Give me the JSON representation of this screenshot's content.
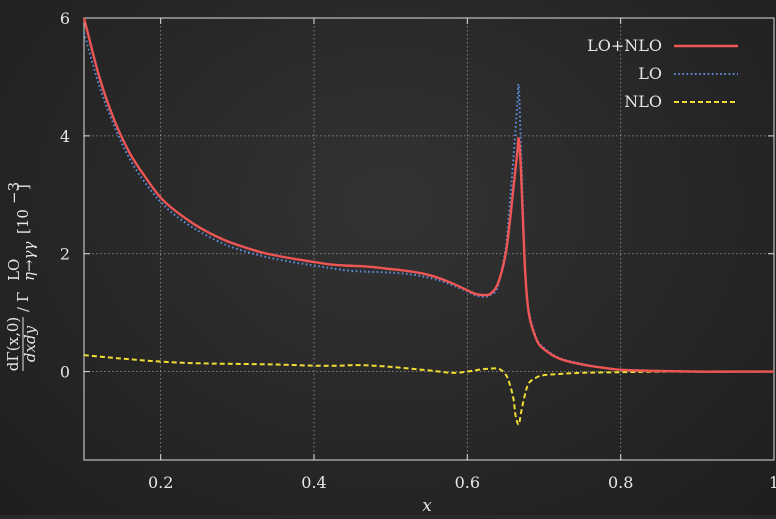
{
  "chart_data": {
    "type": "line",
    "title": "",
    "xlabel": "x",
    "ylabel": "dΓ(x,0)/dxdy / Γ^LO_{η→γγ} [10^-3]",
    "ylabel_parts": {
      "numerator": "dΓ(x,0)",
      "denominator": "dxdy",
      "gamma": "/ Γ",
      "gamma_sup": "LO",
      "gamma_sub": "η→γγ",
      "units": "[10",
      "units_exp": "−3",
      "units_close": "]"
    },
    "xlim": [
      0.1,
      1.0
    ],
    "ylim": [
      -1.5,
      6
    ],
    "x_ticks": [
      0.2,
      0.4,
      0.6,
      0.8,
      1
    ],
    "x_tick_labels": [
      "0.2",
      "0.4",
      "0.6",
      "0.8",
      "1"
    ],
    "y_ticks": [
      0,
      2,
      4,
      6
    ],
    "y_tick_labels": [
      "0",
      "2",
      "4",
      "6"
    ],
    "grid": true,
    "legend_position": "top-right",
    "series": [
      {
        "name": "LO+NLO",
        "color": "#ee5555",
        "style": "solid",
        "x": [
          0.1,
          0.12,
          0.14,
          0.16,
          0.18,
          0.2,
          0.22,
          0.25,
          0.28,
          0.3,
          0.33,
          0.35,
          0.38,
          0.4,
          0.42,
          0.44,
          0.46,
          0.48,
          0.5,
          0.52,
          0.54,
          0.56,
          0.58,
          0.6,
          0.61,
          0.62,
          0.63,
          0.64,
          0.65,
          0.655,
          0.66,
          0.665,
          0.667,
          0.67,
          0.675,
          0.68,
          0.69,
          0.7,
          0.72,
          0.75,
          0.78,
          0.8,
          0.85,
          0.9,
          0.95,
          1.0
        ],
        "y": [
          6.0,
          5.0,
          4.25,
          3.7,
          3.3,
          2.95,
          2.72,
          2.45,
          2.25,
          2.15,
          2.03,
          1.97,
          1.9,
          1.86,
          1.82,
          1.8,
          1.79,
          1.77,
          1.74,
          1.71,
          1.67,
          1.6,
          1.5,
          1.38,
          1.32,
          1.3,
          1.32,
          1.5,
          2.0,
          2.5,
          3.1,
          3.7,
          3.95,
          3.4,
          1.8,
          1.0,
          0.55,
          0.38,
          0.22,
          0.12,
          0.06,
          0.03,
          0.01,
          0.0,
          0.0,
          0.0
        ]
      },
      {
        "name": "LO",
        "color": "#5b8fe0",
        "style": "dotted",
        "x": [
          0.1,
          0.12,
          0.14,
          0.16,
          0.18,
          0.2,
          0.22,
          0.25,
          0.28,
          0.3,
          0.33,
          0.35,
          0.38,
          0.4,
          0.42,
          0.44,
          0.46,
          0.48,
          0.5,
          0.52,
          0.54,
          0.56,
          0.58,
          0.6,
          0.61,
          0.62,
          0.63,
          0.64,
          0.65,
          0.655,
          0.66,
          0.665,
          0.667,
          0.67,
          0.675,
          0.68,
          0.69,
          0.7,
          0.72,
          0.75,
          0.78,
          0.8,
          0.85,
          0.9,
          0.95,
          1.0
        ],
        "y": [
          5.75,
          4.85,
          4.15,
          3.6,
          3.2,
          2.88,
          2.64,
          2.38,
          2.18,
          2.08,
          1.97,
          1.91,
          1.84,
          1.8,
          1.76,
          1.72,
          1.7,
          1.69,
          1.68,
          1.66,
          1.62,
          1.56,
          1.47,
          1.36,
          1.3,
          1.27,
          1.3,
          1.45,
          2.1,
          2.8,
          3.6,
          4.5,
          4.85,
          3.8,
          1.9,
          1.05,
          0.57,
          0.4,
          0.23,
          0.13,
          0.06,
          0.03,
          0.01,
          0.0,
          0.0,
          0.0
        ]
      },
      {
        "name": "NLO",
        "color": "#eedd33",
        "style": "dashed",
        "x": [
          0.1,
          0.15,
          0.2,
          0.25,
          0.3,
          0.35,
          0.4,
          0.43,
          0.46,
          0.5,
          0.55,
          0.58,
          0.6,
          0.62,
          0.64,
          0.65,
          0.655,
          0.66,
          0.663,
          0.667,
          0.67,
          0.675,
          0.68,
          0.69,
          0.7,
          0.72,
          0.75,
          0.8,
          0.85,
          0.9,
          0.95,
          1.0
        ],
        "y": [
          0.28,
          0.22,
          0.17,
          0.14,
          0.13,
          0.12,
          0.1,
          0.1,
          0.11,
          0.08,
          0.02,
          -0.02,
          0.0,
          0.04,
          0.05,
          -0.05,
          -0.2,
          -0.45,
          -0.75,
          -0.9,
          -0.7,
          -0.4,
          -0.2,
          -0.1,
          -0.06,
          -0.04,
          -0.02,
          -0.01,
          0.0,
          0.0,
          0.0,
          0.0
        ]
      }
    ]
  }
}
